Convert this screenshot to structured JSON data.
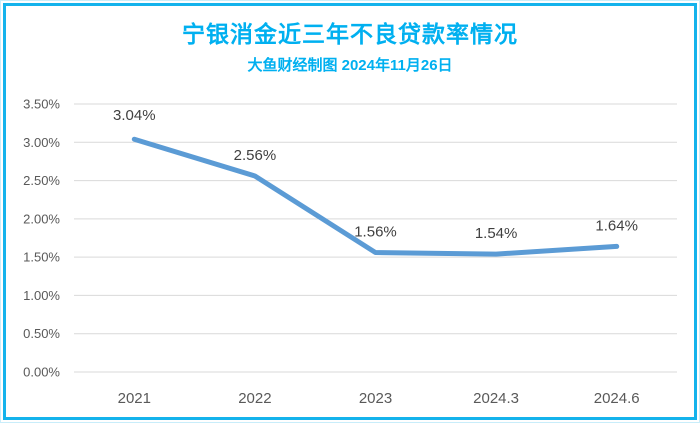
{
  "page": {
    "background": "#ffffff",
    "frame_border_color": "#14b3ec"
  },
  "header": {
    "title": "宁银消金近三年不良贷款率情况",
    "subtitle": "大鱼财经制图 2024年11月26日",
    "title_color": "#00b0f0"
  },
  "chart_data": {
    "type": "line",
    "title": "宁银消金近三年不良贷款率情况",
    "subtitle": "大鱼财经制图 2024年11月26日",
    "categories": [
      "2021",
      "2022",
      "2023",
      "2024.3",
      "2024.6"
    ],
    "series": [
      {
        "name": "不良贷款率",
        "values": [
          3.04,
          2.56,
          1.56,
          1.54,
          1.64
        ]
      }
    ],
    "data_labels": [
      "3.04%",
      "2.56%",
      "1.56%",
      "1.54%",
      "1.64%"
    ],
    "xlabel": "",
    "ylabel": "",
    "ylim": [
      0,
      3.5
    ],
    "yticks": [
      0,
      0.5,
      1.0,
      1.5,
      2.0,
      2.5,
      3.0,
      3.5
    ],
    "ytick_labels": [
      "0.00%",
      "0.50%",
      "1.00%",
      "1.50%",
      "2.00%",
      "2.50%",
      "3.00%",
      "3.50%"
    ],
    "grid": true,
    "legend": false,
    "line_color": "#5b9bd5",
    "gridline_color": "#d9d9d9",
    "axis_label_color": "#595959",
    "data_label_color": "#404040"
  }
}
